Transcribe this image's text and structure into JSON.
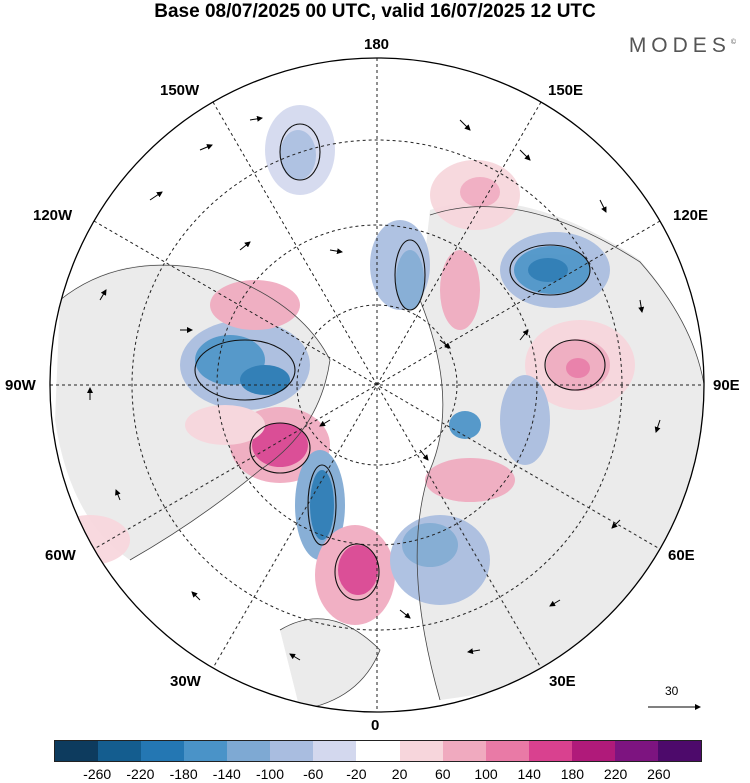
{
  "title": "Base 08/07/2025 00 UTC, valid 16/07/2025 12 UTC",
  "brand": "MODES",
  "longitude_labels": {
    "top": "180",
    "bottom": "0",
    "left": "90W",
    "right": "90E",
    "upper_left_1": "150W",
    "upper_left_2": "120W",
    "lower_left_1": "60W",
    "lower_left_2": "30W",
    "upper_right_1": "150E",
    "upper_right_2": "120E",
    "lower_right_1": "60E",
    "lower_right_2": "30E"
  },
  "vector_reference": "30",
  "colorbar": {
    "labels": [
      "-260",
      "-220",
      "-180",
      "-140",
      "-100",
      "-60",
      "-20",
      "20",
      "60",
      "100",
      "140",
      "180",
      "220",
      "260"
    ],
    "colors": [
      "#0d3b5e",
      "#145d8f",
      "#2477b3",
      "#4a93c8",
      "#7ea9d3",
      "#a9bde0",
      "#d3d8ee",
      "#ffffff",
      "#f7d6dc",
      "#f0aabf",
      "#e97aa6",
      "#d9418f",
      "#b01a7a",
      "#7d1480",
      "#4d0a6b"
    ]
  },
  "anomalies": [
    {
      "name": "blob-ne-blue-1",
      "color": "#2a78b5"
    },
    {
      "name": "blob-e-pink-1",
      "color": "#e06aa0"
    }
  ]
}
